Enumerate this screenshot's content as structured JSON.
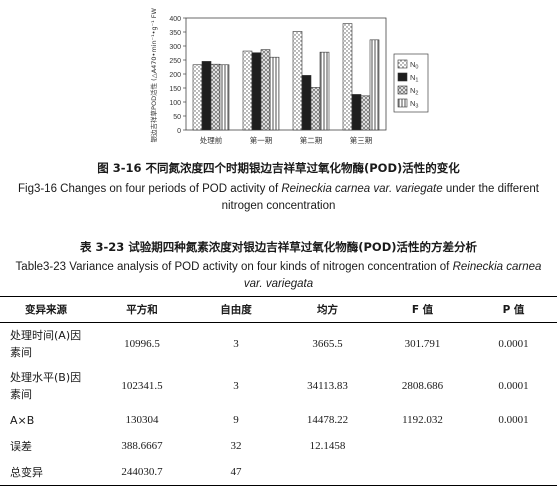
{
  "figure": {
    "chart_data": {
      "type": "bar",
      "categories": [
        "处理前",
        "第一期",
        "第二期",
        "第三期"
      ],
      "series": [
        {
          "name": "N0",
          "values": [
            233,
            282,
            352,
            380
          ]
        },
        {
          "name": "N1",
          "values": [
            245,
            276,
            195,
            127
          ]
        },
        {
          "name": "N2",
          "values": [
            235,
            287,
            152,
            122
          ]
        },
        {
          "name": "N3",
          "values": [
            233,
            260,
            278,
            322
          ]
        }
      ],
      "ylabel": "银边吉祥草POD活性 (△A470•min⁻¹•g⁻¹ FW)",
      "ylim": [
        0,
        400
      ],
      "yticks": [
        "0",
        "50",
        "100",
        "150",
        "200",
        "250",
        "300",
        "350",
        "400"
      ],
      "legend_position": "right",
      "legend": [
        {
          "base": "N",
          "sub": "0"
        },
        {
          "base": "N",
          "sub": "1"
        },
        {
          "base": "N",
          "sub": "2"
        },
        {
          "base": "N",
          "sub": "3"
        }
      ],
      "patterns": [
        "dots",
        "black",
        "crosshatch",
        "vlines"
      ]
    },
    "caption_cn": "图 3-16 不同氮浓度四个时期银边吉祥草过氧化物酶(POD)活性的变化",
    "caption_en_pre": "Fig3-16 Changes on four periods of POD activity of ",
    "caption_en_italic": "Reineckia carnea var. variegate",
    "caption_en_post": " under the different nitrogen concentration"
  },
  "table": {
    "caption_cn": "表 3-23 试验期四种氮素浓度对银边吉祥草过氧化物酶(POD)活性的方差分析",
    "caption_en_pre": "Table3-23 Variance analysis of POD activity on four kinds of nitrogen concentration of ",
    "caption_en_italic": "Reineckia carnea var. variegata",
    "headers": [
      "变异来源",
      "平方和",
      "自由度",
      "均方",
      "F 值",
      "P 值"
    ],
    "rows": [
      {
        "source": "处理时间(A)因素间",
        "ss": "10996.5",
        "df": "3",
        "ms": "3665.5",
        "f": "301.791",
        "p": "0.0001"
      },
      {
        "source": "处理水平(B)因素间",
        "ss": "102341.5",
        "df": "3",
        "ms": "34113.83",
        "f": "2808.686",
        "p": "0.0001"
      },
      {
        "source": "A×B",
        "ss": "130304",
        "df": "9",
        "ms": "14478.22",
        "f": "1192.032",
        "p": "0.0001"
      },
      {
        "source": "误差",
        "ss": "388.6667",
        "df": "32",
        "ms": "12.1458",
        "f": "",
        "p": ""
      },
      {
        "source": "总变异",
        "ss": "244030.7",
        "df": "47",
        "ms": "",
        "f": "",
        "p": ""
      }
    ]
  }
}
